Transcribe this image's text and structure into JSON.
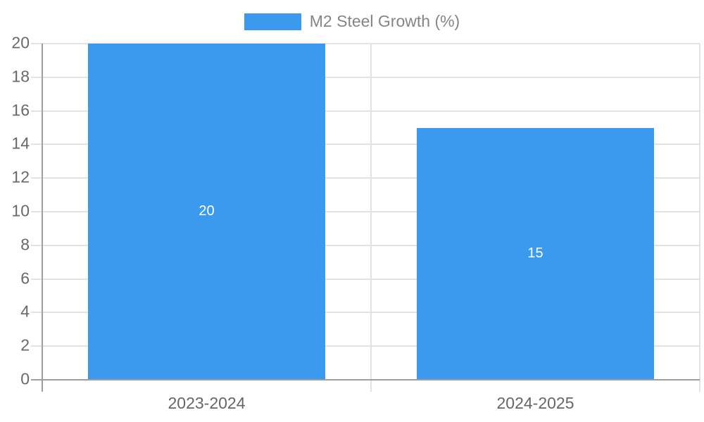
{
  "chart_data": {
    "type": "bar",
    "title": "",
    "categories": [
      "2023-2024",
      "2024-2025"
    ],
    "series": [
      {
        "name": "M2 Steel Growth (%)",
        "color": "#3B99EE",
        "values": [
          20,
          15
        ],
        "value_labels": [
          "20",
          "15"
        ]
      }
    ],
    "y_ticks": [
      "0",
      "2",
      "4",
      "6",
      "8",
      "10",
      "12",
      "14",
      "16",
      "18",
      "20"
    ],
    "ylim": [
      0,
      20
    ],
    "xlabel": "",
    "ylabel": "",
    "grid": true,
    "legend_position": "top",
    "colors": {
      "bar": "#3B99EE",
      "grid": "#E3E3E3",
      "axis": "#9E9E9E",
      "tick_text": "#696969",
      "category_text": "#666666",
      "legend_text": "#858585",
      "bar_label_text": "#FFFFFF"
    }
  }
}
